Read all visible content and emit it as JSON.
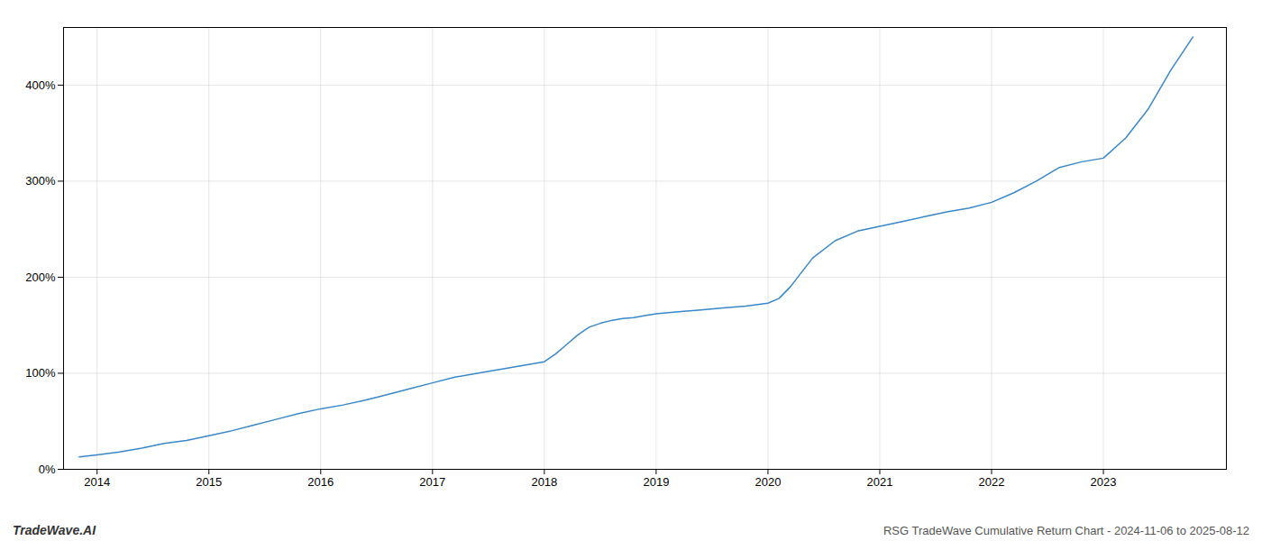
{
  "chart_data": {
    "type": "line",
    "title": "RSG TradeWave Cumulative Return Chart - 2024-11-06 to 2025-08-12",
    "annotations": [
      "TradeWave.AI"
    ],
    "x": [
      2013.84,
      2014.0,
      2014.2,
      2014.4,
      2014.6,
      2014.8,
      2015.0,
      2015.2,
      2015.4,
      2015.6,
      2015.8,
      2016.0,
      2016.2,
      2016.4,
      2016.6,
      2016.8,
      2017.0,
      2017.2,
      2017.4,
      2017.6,
      2017.8,
      2018.0,
      2018.1,
      2018.2,
      2018.3,
      2018.4,
      2018.5,
      2018.6,
      2018.7,
      2018.8,
      2018.9,
      2019.0,
      2019.2,
      2019.4,
      2019.6,
      2019.8,
      2020.0,
      2020.1,
      2020.2,
      2020.4,
      2020.6,
      2020.8,
      2021.0,
      2021.2,
      2021.4,
      2021.6,
      2021.8,
      2022.0,
      2022.2,
      2022.4,
      2022.6,
      2022.8,
      2023.0,
      2023.2,
      2023.4,
      2023.6,
      2023.8
    ],
    "values": [
      13,
      15,
      18,
      22,
      27,
      30,
      35,
      40,
      46,
      52,
      58,
      63,
      67,
      72,
      78,
      84,
      90,
      96,
      100,
      104,
      108,
      112,
      120,
      130,
      140,
      148,
      152,
      155,
      157,
      158,
      160,
      162,
      164,
      166,
      168,
      170,
      173,
      178,
      190,
      220,
      238,
      248,
      253,
      258,
      263,
      268,
      272,
      278,
      288,
      300,
      314,
      320,
      324,
      345,
      375,
      415,
      450
    ],
    "color": "#3a87c8",
    "xlim": [
      2013.7,
      2024.1
    ],
    "xticks": [
      2014,
      2015,
      2016,
      2017,
      2018,
      2019,
      2020,
      2021,
      2022,
      2023
    ],
    "ylim": [
      0,
      460
    ],
    "yticks": [
      {
        "value": 0,
        "label": "0%"
      },
      {
        "value": 100,
        "label": "100%"
      },
      {
        "value": 200,
        "label": "200%"
      },
      {
        "value": 300,
        "label": "300%"
      },
      {
        "value": 400,
        "label": "400%"
      }
    ],
    "grid": true
  }
}
